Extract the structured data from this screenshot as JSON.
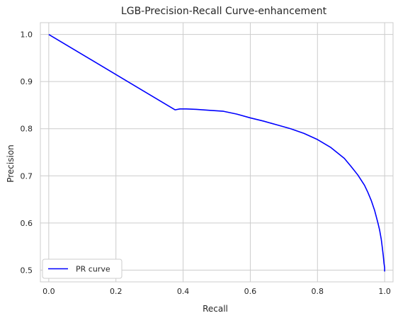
{
  "chart_data": {
    "type": "line",
    "title": "LGB-Precision-Recall Curve-enhancement",
    "xlabel": "Recall",
    "ylabel": "Precision",
    "xlim": [
      -0.025,
      1.025
    ],
    "ylim": [
      0.475,
      1.025
    ],
    "xticks": [
      0.0,
      0.2,
      0.4,
      0.6,
      0.8,
      1.0
    ],
    "xtick_labels": [
      "0.0",
      "0.2",
      "0.4",
      "0.6",
      "0.8",
      "1.0"
    ],
    "yticks": [
      0.5,
      0.6,
      0.7,
      0.8,
      0.9,
      1.0
    ],
    "ytick_labels": [
      "0.5",
      "0.6",
      "0.7",
      "0.8",
      "0.9",
      "1.0"
    ],
    "grid": true,
    "legend_position": "lower-left",
    "series": [
      {
        "name": "PR curve",
        "color": "#0000ff",
        "x": [
          0.0,
          0.376,
          0.39,
          0.41,
          0.44,
          0.48,
          0.52,
          0.56,
          0.6,
          0.64,
          0.68,
          0.72,
          0.76,
          0.8,
          0.84,
          0.88,
          0.9,
          0.92,
          0.94,
          0.95,
          0.96,
          0.97,
          0.98,
          0.985,
          0.99,
          0.993,
          0.996,
          0.998,
          1.0,
          1.0
        ],
        "y": [
          1.0,
          0.84,
          0.842,
          0.842,
          0.841,
          0.839,
          0.837,
          0.831,
          0.823,
          0.816,
          0.808,
          0.8,
          0.79,
          0.777,
          0.76,
          0.737,
          0.72,
          0.702,
          0.68,
          0.665,
          0.648,
          0.627,
          0.6,
          0.585,
          0.565,
          0.548,
          0.53,
          0.515,
          0.505,
          0.497
        ]
      }
    ]
  }
}
